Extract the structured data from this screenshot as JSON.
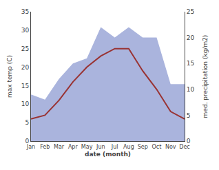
{
  "chart_data": {
    "type": "line",
    "xlabel": "date (month)",
    "ylabel": "max temp (C)",
    "y2label": "med. precipitation (kg/m2)",
    "categories": [
      "Jan",
      "Feb",
      "Mar",
      "Apr",
      "May",
      "Jun",
      "Jul",
      "Aug",
      "Sep",
      "Oct",
      "Nov",
      "Dec"
    ],
    "series": [
      {
        "type": "area",
        "color": "#aab4dd",
        "axis": "y2",
        "values": [
          9,
          8,
          12,
          15,
          16,
          22,
          20,
          22,
          20,
          20,
          11,
          11
        ]
      },
      {
        "type": "line",
        "color": "#993333",
        "values": [
          6,
          7,
          11,
          16,
          20,
          23,
          25,
          25,
          19,
          14,
          8,
          6
        ]
      }
    ],
    "ylim": [
      0,
      35
    ],
    "yticks": [
      0,
      5,
      10,
      15,
      20,
      25,
      30,
      35
    ],
    "y2lim": [
      0,
      25
    ],
    "y2ticks": [
      0,
      5,
      10,
      15,
      20,
      25
    ],
    "grid": false
  }
}
